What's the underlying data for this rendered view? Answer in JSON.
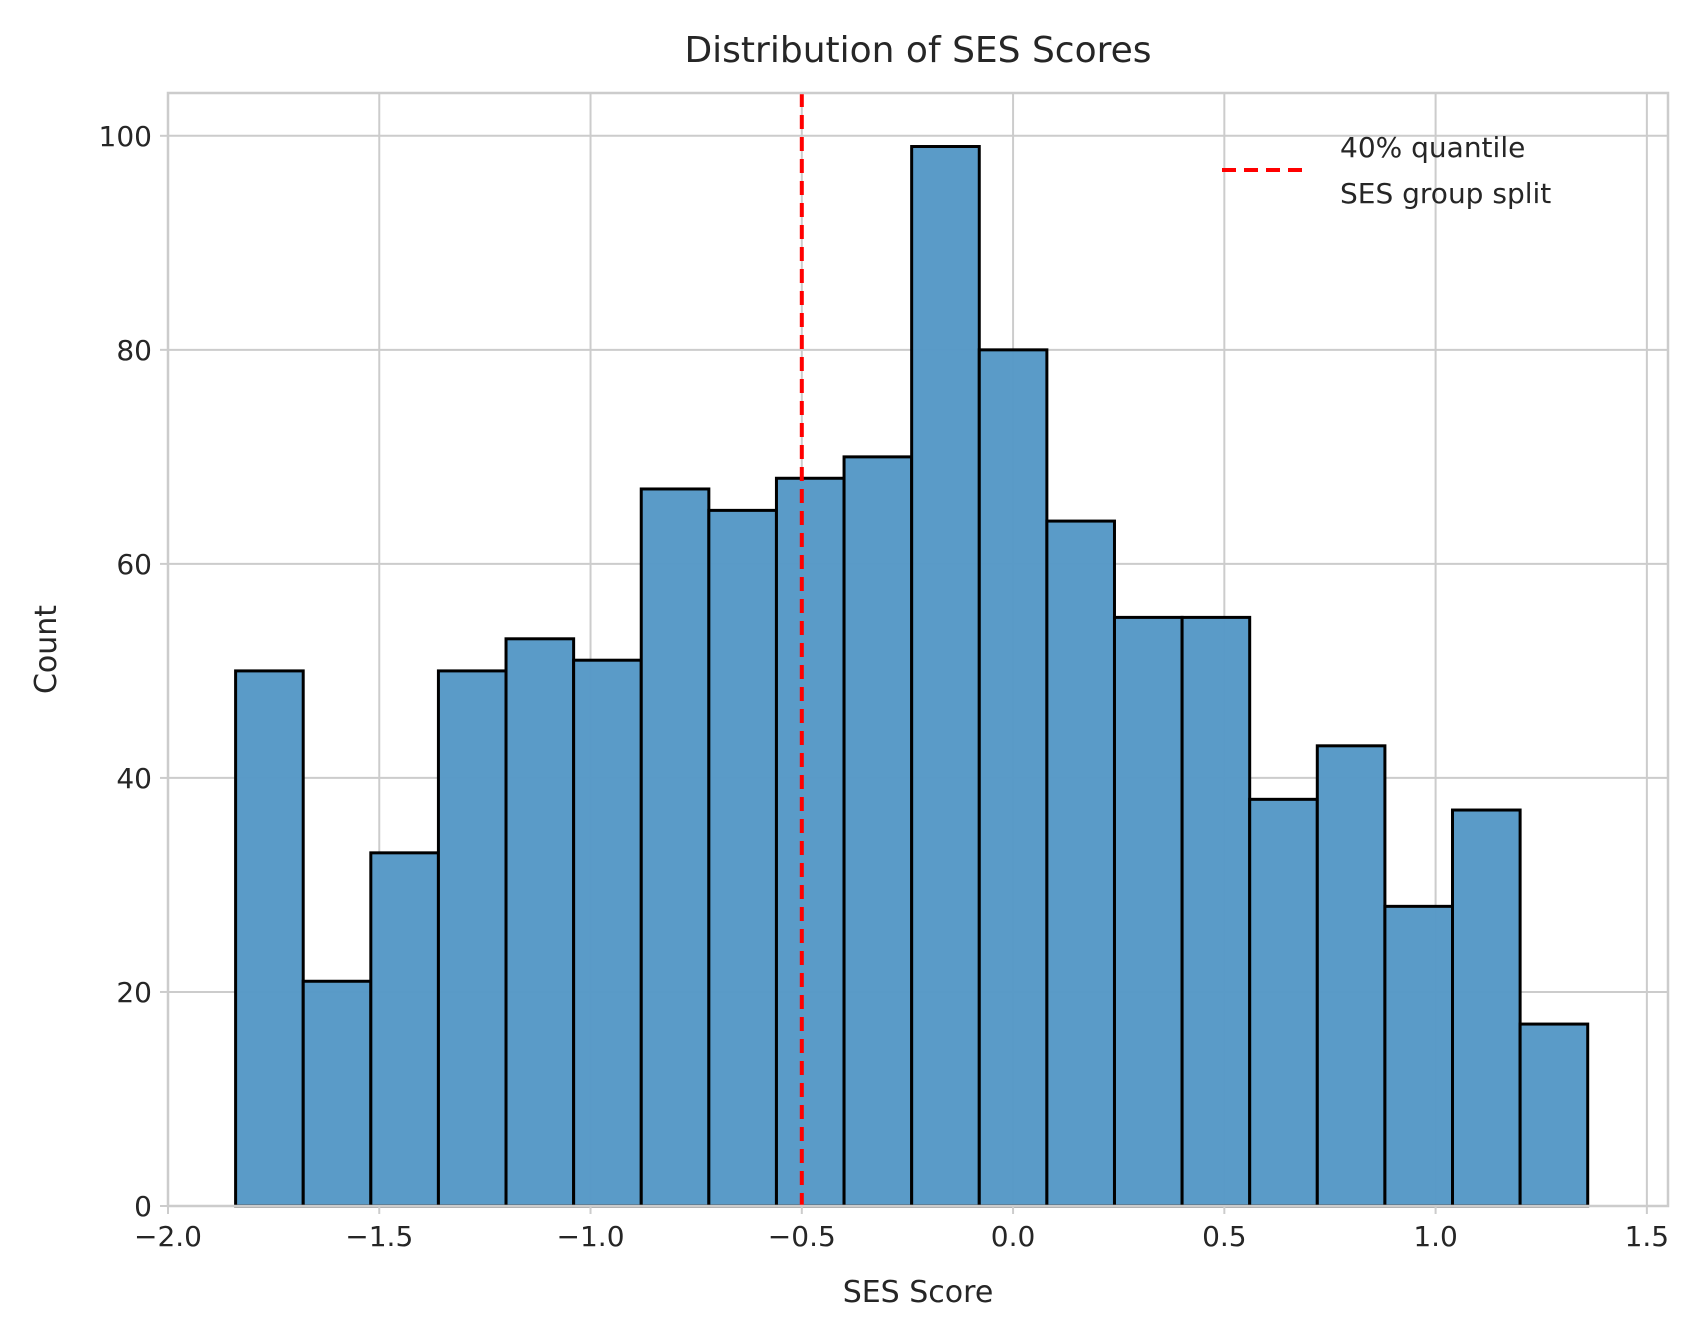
{
  "chart_data": {
    "type": "bar",
    "subtype": "histogram",
    "title": "Distribution of SES Scores",
    "xlabel": "SES Score",
    "ylabel": "Count",
    "xlim": [
      -2.0,
      1.55
    ],
    "ylim": [
      0,
      104
    ],
    "xticks": [
      -2.0,
      -1.5,
      -1.0,
      -0.5,
      0.0,
      0.5,
      1.0,
      1.5
    ],
    "xtick_labels": [
      "−2.0",
      "−1.5",
      "−1.0",
      "−0.5",
      "0.0",
      "0.5",
      "1.0",
      "1.5"
    ],
    "yticks": [
      0,
      20,
      40,
      60,
      80,
      100
    ],
    "ytick_labels": [
      "0",
      "20",
      "40",
      "60",
      "80",
      "100"
    ],
    "grid": true,
    "bin_edges": [
      -1.84,
      -1.68,
      -1.52,
      -1.36,
      -1.2,
      -1.04,
      -0.88,
      -0.72,
      -0.56,
      -0.4,
      -0.24,
      -0.08,
      0.08,
      0.24,
      0.4,
      0.56,
      0.72,
      0.88,
      1.04,
      1.2,
      1.36
    ],
    "counts": [
      50,
      21,
      33,
      50,
      53,
      51,
      67,
      65,
      68,
      70,
      99,
      80,
      64,
      55,
      55,
      38,
      43,
      28,
      37,
      17
    ],
    "bar_color": "#5799c7",
    "bar_edge_color": "#000000",
    "reference_line": {
      "x": -0.5,
      "color": "#ff0000",
      "style": "dashed",
      "label": "40% quantile\nSES group split"
    },
    "legend": {
      "position": "top-right",
      "lines": [
        "40% quantile",
        "SES group split"
      ]
    }
  }
}
